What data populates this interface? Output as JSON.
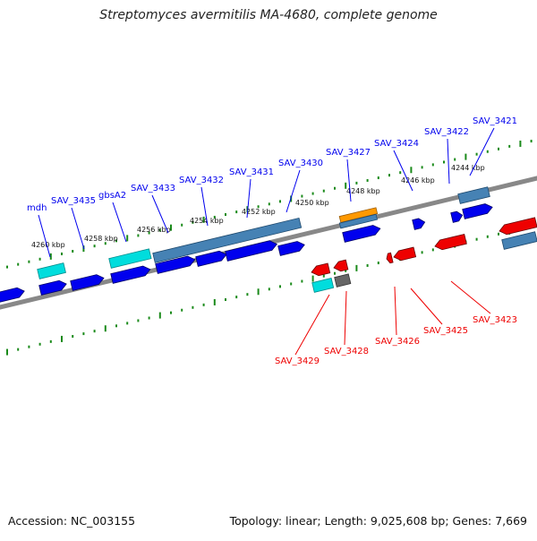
{
  "title": "Streptomyces avermitilis MA-4680, complete genome",
  "footer": {
    "accession": "Accession: NC_003155",
    "summary": "Topology: linear; Length: 9,025,608 bp; Genes: 7,669"
  },
  "colors": {
    "forward_gene": "#0000ee",
    "reverse_gene": "#ee0000",
    "rrna_cyan": "#00dddd",
    "cds_steelblue": "#4682b4",
    "orange_feature": "#ff9900",
    "gray_feature": "#666666",
    "backbone": "#888888",
    "ticks": "#1a8a1a"
  },
  "ticks": [
    {
      "label": "4260 kbp"
    },
    {
      "label": "4258 kbp"
    },
    {
      "label": "4256 kbp"
    },
    {
      "label": "4254 kbp"
    },
    {
      "label": "4252 kbp"
    },
    {
      "label": "4250 kbp"
    },
    {
      "label": "4248 kbp"
    },
    {
      "label": "4246 kbp"
    },
    {
      "label": "4244 kbp"
    }
  ],
  "forward_labels": [
    {
      "text": "mdh"
    },
    {
      "text": "SAV_3435"
    },
    {
      "text": "gbsA2"
    },
    {
      "text": "SAV_3433"
    },
    {
      "text": "SAV_3432"
    },
    {
      "text": "SAV_3431"
    },
    {
      "text": "SAV_3430"
    },
    {
      "text": "SAV_3427"
    },
    {
      "text": "SAV_3424"
    },
    {
      "text": "SAV_3422"
    },
    {
      "text": "SAV_3421"
    }
  ],
  "reverse_labels": [
    {
      "text": "SAV_3429"
    },
    {
      "text": "SAV_3428"
    },
    {
      "text": "SAV_3426"
    },
    {
      "text": "SAV_3425"
    },
    {
      "text": "SAV_3423"
    }
  ]
}
